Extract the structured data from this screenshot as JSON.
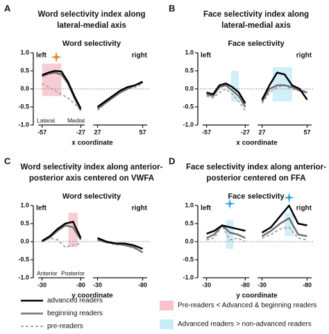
{
  "chart_data": [
    {
      "type": "line",
      "panel": "A",
      "title": [
        "Word selectivity index along",
        "lateral-medial axis"
      ],
      "subtitle": "Word selectivity",
      "corner_labels": [
        "left",
        "right"
      ],
      "end_labels": [
        "Lateral",
        "Medial"
      ],
      "xlabel": "x coordinate",
      "ylim": [
        -1,
        1
      ],
      "yticks": [
        {
          "value": 1,
          "label": "1.0"
        },
        0.5,
        {
          "value": 0,
          "label": "0.0"
        },
        -0.5,
        {
          "value": -1,
          "label": "-1.0"
        }
      ],
      "segments": [
        {
          "xlim": [
            -60,
            -24
          ],
          "xticks": [
            -57,
            -27
          ],
          "x": [
            -57,
            -52,
            -47,
            -42,
            -37,
            -32,
            -27
          ],
          "series": [
            {
              "values": [
                0.38,
                0.45,
                0.5,
                0.48,
                0.2,
                -0.2,
                -0.55
              ]
            },
            {
              "values": [
                0.35,
                0.42,
                0.45,
                0.4,
                0.15,
                -0.25,
                -0.6
              ]
            },
            {
              "values": [
                0.15,
                0.05,
                -0.05,
                -0.15,
                -0.25,
                -0.4,
                -0.6
              ]
            }
          ],
          "regions": [
            {
              "x0": -57,
              "x1": -42,
              "y0": -0.2,
              "y1": 0.7,
              "kind": 0
            }
          ],
          "stars": [
            {
              "x": -46,
              "y": 0.88,
              "kind": 0
            }
          ]
        },
        {
          "xlim": [
            24,
            60
          ],
          "xticks": [
            27,
            57
          ],
          "x": [
            27,
            32,
            37,
            42,
            47,
            52,
            57
          ],
          "series": [
            {
              "values": [
                -0.5,
                -0.35,
                -0.2,
                -0.05,
                0.05,
                0.1,
                0.2
              ]
            },
            {
              "values": [
                -0.55,
                -0.4,
                -0.25,
                -0.1,
                0.0,
                0.1,
                0.18
              ]
            },
            {
              "values": [
                -0.6,
                -0.4,
                -0.25,
                -0.1,
                0.0,
                0.05,
                0.15
              ]
            }
          ],
          "regions": [],
          "stars": []
        }
      ]
    },
    {
      "type": "line",
      "panel": "B",
      "title": [
        "Face selectivity index along",
        "lateral-medial axis"
      ],
      "subtitle": "Face selectivity",
      "corner_labels": [
        "left",
        "right"
      ],
      "xlabel": "x coordinate",
      "ylim": [
        -1,
        1
      ],
      "yticks": [
        {
          "value": 1,
          "label": "1.0"
        },
        0.5,
        {
          "value": 0,
          "label": "0.0"
        },
        -0.5,
        {
          "value": -1,
          "label": "-1.0"
        }
      ],
      "segments": [
        {
          "xlim": [
            -60,
            -24
          ],
          "xticks": [
            -57,
            -27
          ],
          "x": [
            -57,
            -52,
            -47,
            -42,
            -37,
            -32,
            -27
          ],
          "series": [
            {
              "values": [
                -0.1,
                -0.15,
                0.1,
                0.15,
                0.05,
                -0.1,
                -0.4
              ]
            },
            {
              "values": [
                -0.15,
                -0.2,
                0.05,
                0.1,
                -0.05,
                -0.2,
                -0.5
              ]
            },
            {
              "values": [
                -0.2,
                -0.25,
                -0.1,
                0.0,
                -0.15,
                -0.35,
                -0.6
              ]
            }
          ],
          "regions": [
            {
              "x0": -38,
              "x1": -32,
              "y0": -0.35,
              "y1": 0.5,
              "kind": 1
            }
          ],
          "stars": []
        },
        {
          "xlim": [
            24,
            60
          ],
          "xticks": [
            27,
            57
          ],
          "x": [
            27,
            32,
            37,
            42,
            47,
            52,
            57
          ],
          "series": [
            {
              "values": [
                -0.3,
                0.1,
                0.45,
                0.4,
                0.1,
                0.0,
                -0.3
              ]
            },
            {
              "values": [
                -0.35,
                0.0,
                0.1,
                0.1,
                0.05,
                -0.05,
                -0.1
              ]
            },
            {
              "values": [
                -0.4,
                -0.1,
                0.05,
                0.1,
                0.0,
                -0.05,
                -0.05
              ]
            }
          ],
          "regions": [
            {
              "x0": 34,
              "x1": 47,
              "y0": -0.35,
              "y1": 0.6,
              "kind": 1
            }
          ],
          "stars": []
        }
      ]
    },
    {
      "type": "line",
      "panel": "C",
      "title": [
        "Word selectivity index along anterior-",
        "posterior axis centered on VWFA"
      ],
      "subtitle": "Word selectivity",
      "corner_labels": [
        "left",
        "right"
      ],
      "end_labels": [
        "Anterior",
        "Posterior"
      ],
      "xlabel": "y coordinate",
      "ylim": [
        -1,
        1
      ],
      "yticks": [
        {
          "value": 1,
          "label": "1.0"
        },
        0.5,
        {
          "value": 0,
          "label": "0.0"
        },
        -0.5,
        {
          "value": -1,
          "label": "-1.0"
        }
      ],
      "segments": [
        {
          "xlim": [
            -25,
            -85
          ],
          "xticks": [
            -30,
            -80
          ],
          "x": [
            -30,
            -40,
            -50,
            -60,
            -70,
            -80
          ],
          "series": [
            {
              "values": [
                0.02,
                0.15,
                0.35,
                0.5,
                0.55,
                0.1
              ]
            },
            {
              "values": [
                0.0,
                0.12,
                0.3,
                0.45,
                0.4,
                0.05
              ]
            },
            {
              "values": [
                0.0,
                0.1,
                0.05,
                -0.15,
                -0.1,
                -0.05
              ]
            }
          ],
          "regions": [
            {
              "x0": -64,
              "x1": -76,
              "y0": -0.15,
              "y1": 0.8,
              "kind": 0
            }
          ],
          "stars": []
        },
        {
          "xlim": [
            -25,
            -85
          ],
          "xticks": [
            -30,
            -80
          ],
          "x": [
            -30,
            -40,
            -50,
            -60,
            -70,
            -80
          ],
          "series": [
            {
              "values": [
                0.1,
                0.0,
                -0.05,
                -0.05,
                -0.1,
                -0.2
              ]
            },
            {
              "values": [
                0.05,
                -0.02,
                -0.05,
                -0.1,
                -0.15,
                -0.3
              ]
            },
            {
              "values": [
                0.05,
                0.0,
                -0.1,
                -0.05,
                -0.2,
                -0.15
              ]
            }
          ],
          "regions": [],
          "stars": []
        }
      ]
    },
    {
      "type": "line",
      "panel": "D",
      "title": [
        "Face selectivity index along anterior-",
        "posterior centered on FFA"
      ],
      "subtitle": "Face selectivity",
      "corner_labels": [
        "left",
        "right"
      ],
      "xlabel": "y coordinate",
      "ylim": [
        -1,
        1
      ],
      "yticks": [
        {
          "value": 1,
          "label": "1.0"
        },
        0.5,
        {
          "value": 0,
          "label": "0.0"
        },
        -0.5,
        {
          "value": -1,
          "label": "-1.0"
        }
      ],
      "segments": [
        {
          "xlim": [
            -25,
            -85
          ],
          "xticks": [
            -30,
            -80
          ],
          "x": [
            -30,
            -40,
            -50,
            -60,
            -70,
            -80
          ],
          "series": [
            {
              "values": [
                0.22,
                0.3,
                0.45,
                0.4,
                0.35,
                0.3
              ]
            },
            {
              "values": [
                0.1,
                0.2,
                0.45,
                0.25,
                0.2,
                0.1
              ]
            },
            {
              "values": [
                0.05,
                0.1,
                0.45,
                0.05,
                0.1,
                0.0
              ]
            }
          ],
          "regions": [
            {
              "x0": -55,
              "x1": -65,
              "y0": -0.2,
              "y1": 0.6,
              "kind": 1
            }
          ],
          "stars": [
            {
              "x": -60,
              "y": 1.05,
              "kind": 1
            }
          ]
        },
        {
          "xlim": [
            -25,
            -85
          ],
          "xticks": [
            -30,
            -80
          ],
          "x": [
            -30,
            -40,
            -50,
            -60,
            -70,
            -80
          ],
          "series": [
            {
              "values": [
                0.25,
                0.4,
                0.7,
                1.0,
                0.5,
                0.45
              ]
            },
            {
              "values": [
                0.15,
                0.3,
                0.5,
                0.65,
                0.2,
                0.15
              ]
            },
            {
              "values": [
                0.1,
                0.2,
                0.35,
                0.4,
                0.1,
                0.05
              ]
            }
          ],
          "regions": [
            {
              "x0": -55,
              "x1": -65,
              "y0": 0.15,
              "y1": 0.8,
              "kind": 1
            }
          ],
          "stars": [
            {
              "x": -60,
              "y": 1.22,
              "kind": 1
            }
          ]
        }
      ]
    }
  ],
  "legend": {
    "series": [
      {
        "name": "advanced readers",
        "color": "#000000",
        "width": 2.5,
        "dashed": false
      },
      {
        "name": "beginning readers",
        "color": "#707070",
        "width": 2.5,
        "dashed": false
      },
      {
        "name": "pre-readers",
        "color": "#a8a8a8",
        "width": 2,
        "dashed": true
      }
    ],
    "regions": [
      {
        "label": "Pre-readers < Advanced & beginning readers",
        "color": "#f7c3cc",
        "star": "#d9812b"
      },
      {
        "label": "Advanced readers > non-advanced readers",
        "color": "#c8ecf8",
        "star": "#2aa6de"
      }
    ]
  }
}
